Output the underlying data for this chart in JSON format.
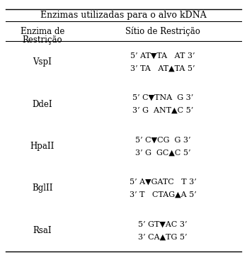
{
  "title": "Enzimas utilizadas para o alvo kDNA",
  "col1_header_line1": "Enzima de",
  "col1_header_line2": "Restrição",
  "col2_header": "Sítio de Restrição",
  "rows": [
    {
      "enzyme": "VspI",
      "line1": "5’ AT▼TA   AT 3’",
      "line2": "3’ TA   AT▲TA 5’"
    },
    {
      "enzyme": "DdeI",
      "line1": "5’ C▼TNA  G 3’",
      "line2": "3’ G  ANT▲C 5’"
    },
    {
      "enzyme": "HpaII",
      "line1": "5’ C▼CG  G 3’",
      "line2": "3’ G  GC▲C 5’"
    },
    {
      "enzyme": "BglII",
      "line1": "5’ A▼GATC   T 3’",
      "line2": "3’ T   CTAG▲A 5’"
    },
    {
      "enzyme": "RsaI",
      "line1": "5’ GT▼AC 3’",
      "line2": "3’ CA▲TG 5’"
    }
  ],
  "bg_color": "#ffffff",
  "text_color": "#000000",
  "line_color": "#555555",
  "font_size": 8.0,
  "header_font_size": 8.5,
  "title_font_size": 9.0,
  "fig_width": 3.49,
  "fig_height": 3.67,
  "dpi": 100
}
